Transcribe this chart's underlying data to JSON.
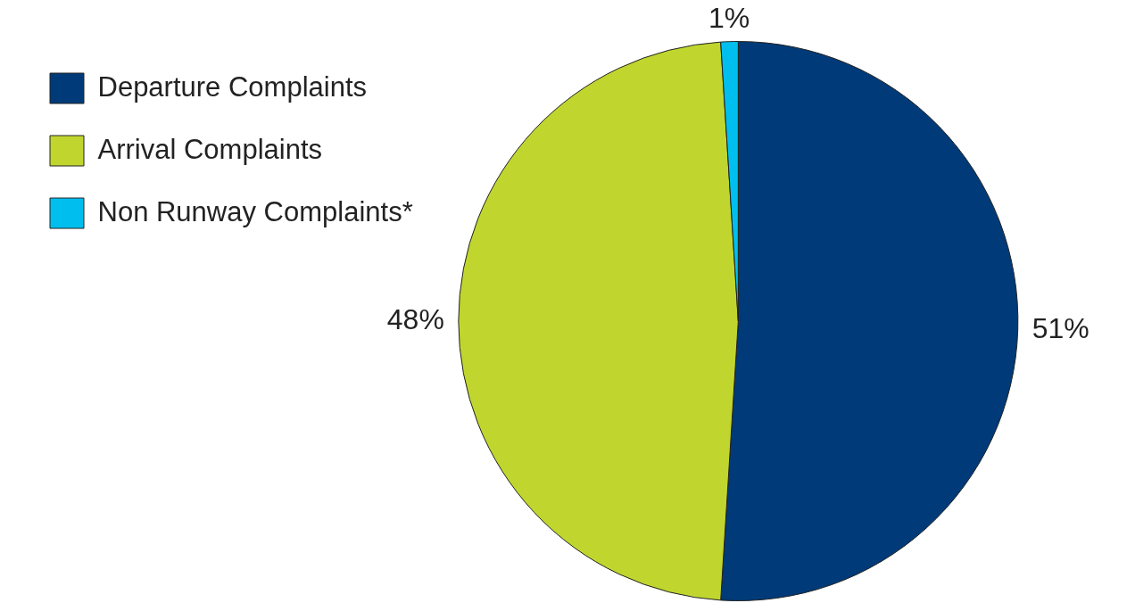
{
  "chart_data": {
    "type": "pie",
    "categories": [
      "Departure Complaints",
      "Arrival Complaints",
      "Non Runway Complaints*"
    ],
    "values": [
      51,
      48,
      1
    ],
    "colors": [
      "#003a78",
      "#c0d62f",
      "#00bfef"
    ],
    "value_labels": [
      "51%",
      "48%",
      "1%"
    ],
    "legend": "top left"
  }
}
